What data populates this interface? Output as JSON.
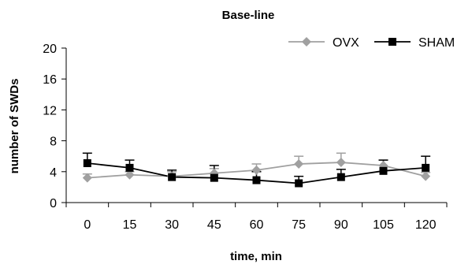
{
  "chart_data": {
    "type": "line",
    "title": "Base-line",
    "xlabel": "time, min",
    "ylabel": "number of SWDs",
    "x": [
      0,
      15,
      30,
      45,
      60,
      75,
      90,
      105,
      120
    ],
    "ylim": [
      0,
      20
    ],
    "yticks": [
      0,
      4,
      8,
      12,
      16,
      20
    ],
    "legend_position": "top-right",
    "grid": false,
    "series": [
      {
        "name": "OVX",
        "values": [
          3.2,
          3.6,
          3.4,
          3.8,
          4.2,
          5.0,
          5.2,
          4.8,
          3.4
        ],
        "errors": [
          0.5,
          0.4,
          0.6,
          0.6,
          0.8,
          1.0,
          1.2,
          0.7,
          0.5
        ],
        "color": "#a0a0a0",
        "marker": "diamond"
      },
      {
        "name": "SHAM",
        "values": [
          5.1,
          4.5,
          3.3,
          3.2,
          2.9,
          2.5,
          3.3,
          4.1,
          4.5
        ],
        "errors": [
          1.3,
          1.0,
          0.9,
          1.6,
          1.1,
          0.9,
          1.0,
          1.4,
          1.5
        ],
        "color": "#000000",
        "marker": "square"
      }
    ]
  }
}
